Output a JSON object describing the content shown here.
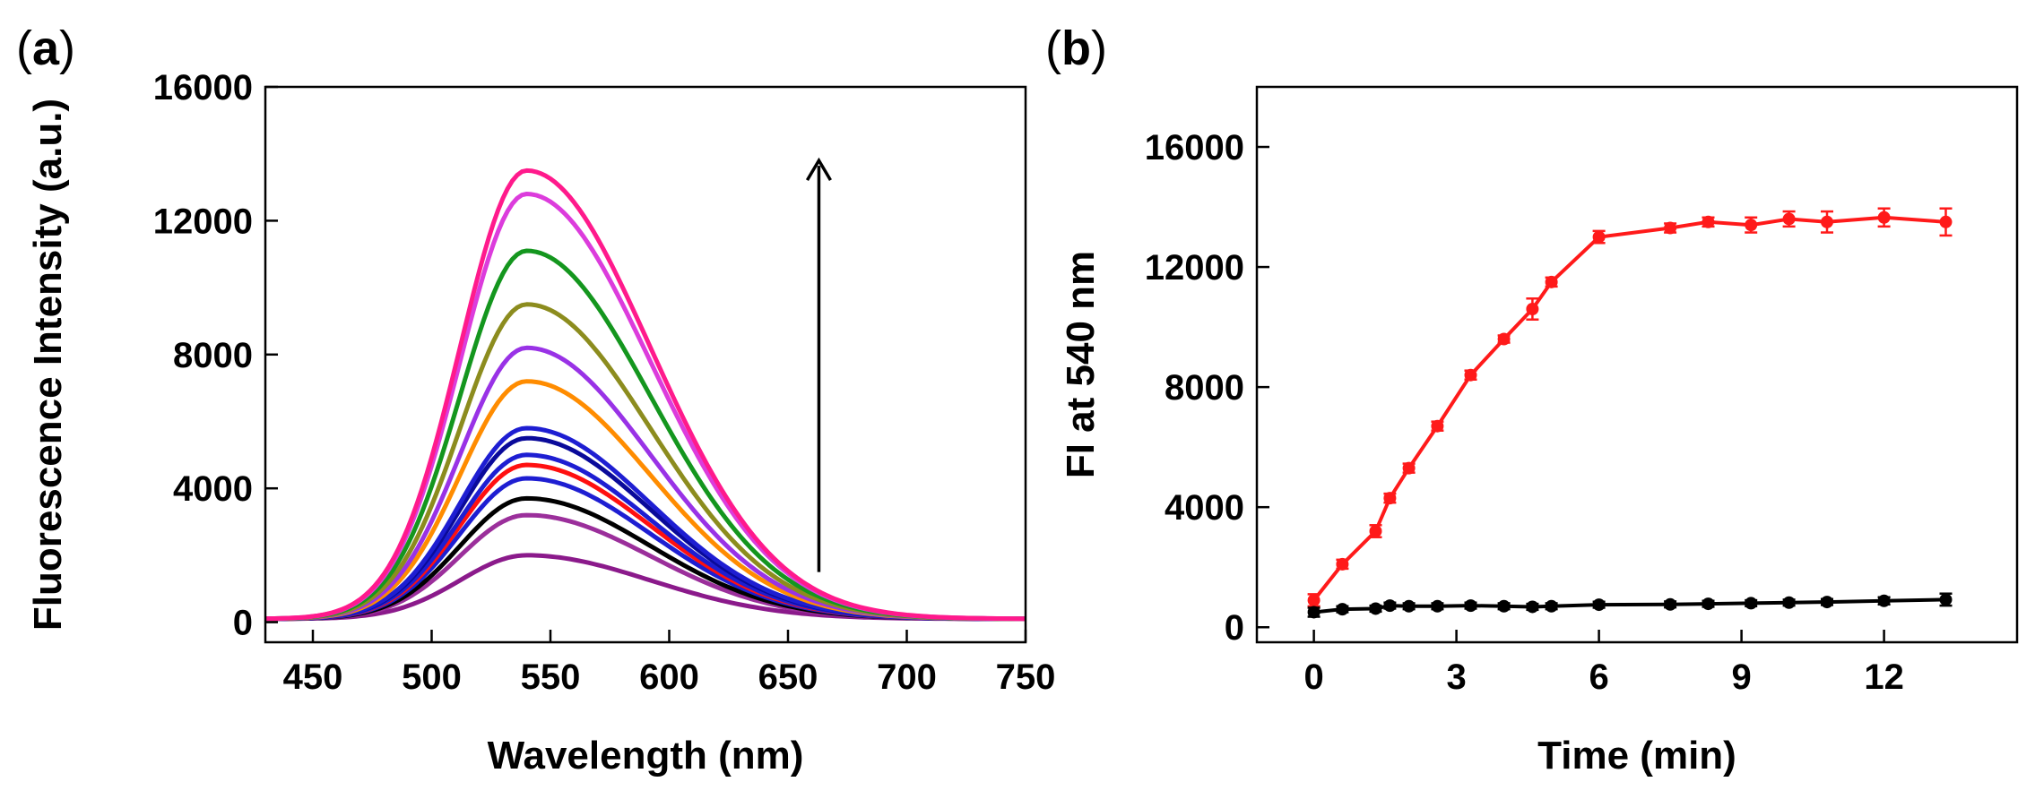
{
  "chart_data": [
    {
      "panel": "(a)",
      "panel_label_paren_open": "(",
      "panel_label_letter": "a",
      "panel_label_paren_close": ")",
      "type": "line",
      "xlabel": "Wavelength (nm)",
      "ylabel": "Fluorescence Intensity (a.u.)",
      "xlim": [
        430,
        750
      ],
      "ylim": [
        -600,
        16000
      ],
      "xticks": [
        450,
        500,
        550,
        600,
        650,
        700,
        750
      ],
      "yticks": [
        0,
        4000,
        8000,
        12000,
        16000
      ],
      "peak_wavelength": 540,
      "baseline": 100,
      "series": [
        {
          "name": "spectrum 1",
          "color": "#8B1A8B",
          "peak": 2000
        },
        {
          "name": "spectrum 2",
          "color": "#9B2F9B",
          "peak": 3200
        },
        {
          "name": "spectrum 3",
          "color": "#000000",
          "peak": 3700
        },
        {
          "name": "spectrum 4",
          "color": "#1E1ED2",
          "peak": 4300
        },
        {
          "name": "spectrum 5",
          "color": "#FF1010",
          "peak": 4700
        },
        {
          "name": "spectrum 6",
          "color": "#1E1ED2",
          "peak": 5000
        },
        {
          "name": "spectrum 7",
          "color": "#0A0A9A",
          "peak": 5500
        },
        {
          "name": "spectrum 8",
          "color": "#1E1ED2",
          "peak": 5800
        },
        {
          "name": "spectrum 9",
          "color": "#FF8C00",
          "peak": 7200
        },
        {
          "name": "spectrum 10",
          "color": "#9932E6",
          "peak": 8200
        },
        {
          "name": "spectrum 11",
          "color": "#8C8C1E",
          "peak": 9500
        },
        {
          "name": "spectrum 12",
          "color": "#14961E",
          "peak": 11100
        },
        {
          "name": "spectrum 13",
          "color": "#DC3CDC",
          "peak": 12800
        },
        {
          "name": "spectrum 14",
          "color": "#FF1A8C",
          "peak": 13500
        }
      ],
      "arrow": {
        "x": 663,
        "y_from": 1500,
        "y_to": 13800,
        "color": "#000000"
      }
    },
    {
      "panel": "(b)",
      "panel_label_paren_open": "(",
      "panel_label_letter": "b",
      "panel_label_paren_close": ")",
      "type": "line",
      "xlabel": "Time (min)",
      "ylabel": "FI at 540 nm",
      "xlim": [
        -1.2,
        14.8
      ],
      "ylim": [
        -500,
        18000
      ],
      "xticks": [
        0,
        3,
        6,
        9,
        12
      ],
      "yticks": [
        0,
        4000,
        8000,
        12000,
        16000
      ],
      "series": [
        {
          "name": "red series",
          "color": "#FF1A1A",
          "x": [
            0,
            0.6,
            1.3,
            1.6,
            2.0,
            2.6,
            3.3,
            4.0,
            4.6,
            5.0,
            6.0,
            7.5,
            8.3,
            9.2,
            10.0,
            10.8,
            12.0,
            13.3
          ],
          "y": [
            900,
            2100,
            3200,
            4300,
            5300,
            6700,
            8400,
            9600,
            10600,
            11500,
            13000,
            13300,
            13500,
            13400,
            13600,
            13500,
            13650,
            13500
          ],
          "err": [
            200,
            150,
            200,
            150,
            150,
            150,
            150,
            120,
            350,
            150,
            200,
            150,
            150,
            250,
            250,
            350,
            300,
            450
          ]
        },
        {
          "name": "black series",
          "color": "#000000",
          "x": [
            0,
            0.6,
            1.3,
            1.6,
            2.0,
            2.6,
            3.3,
            4.0,
            4.6,
            5.0,
            6.0,
            7.5,
            8.3,
            9.2,
            10.0,
            10.8,
            12.0,
            13.3
          ],
          "y": [
            500,
            600,
            620,
            720,
            700,
            700,
            720,
            700,
            680,
            700,
            750,
            760,
            780,
            800,
            820,
            840,
            880,
            920
          ],
          "err": [
            150,
            100,
            100,
            100,
            100,
            100,
            100,
            100,
            100,
            100,
            100,
            100,
            100,
            100,
            100,
            100,
            120,
            200
          ]
        }
      ]
    }
  ]
}
